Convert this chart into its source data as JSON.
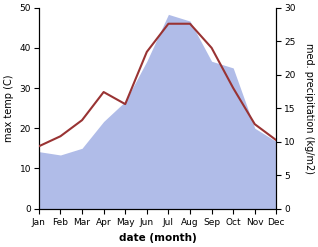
{
  "months": [
    "Jan",
    "Feb",
    "Mar",
    "Apr",
    "May",
    "Jun",
    "Jul",
    "Aug",
    "Sep",
    "Oct",
    "Nov",
    "Dec"
  ],
  "month_indices": [
    0,
    1,
    2,
    3,
    4,
    5,
    6,
    7,
    8,
    9,
    10,
    11
  ],
  "max_temp": [
    15.5,
    18,
    22,
    29,
    26,
    39,
    46,
    46,
    40,
    30,
    21,
    17
  ],
  "precipitation": [
    8.5,
    8,
    9,
    13,
    16,
    22,
    29,
    28,
    22,
    21,
    12,
    10
  ],
  "precip_color": "#b0bce8",
  "precip_fill_alpha": 1.0,
  "temp_ylim": [
    0,
    50
  ],
  "precip_ylim": [
    0,
    30
  ],
  "temp_yticks": [
    0,
    10,
    20,
    30,
    40,
    50
  ],
  "precip_yticks": [
    0,
    5,
    10,
    15,
    20,
    25,
    30
  ],
  "xlabel": "date (month)",
  "ylabel_left": "max temp (C)",
  "ylabel_right": "med. precipitation (kg/m2)",
  "background_color": "#ffffff",
  "line_width": 1.5,
  "temp_line_color": "#993333",
  "tick_fontsize": 6.5,
  "label_fontsize": 7.0,
  "xlabel_fontsize": 7.5
}
